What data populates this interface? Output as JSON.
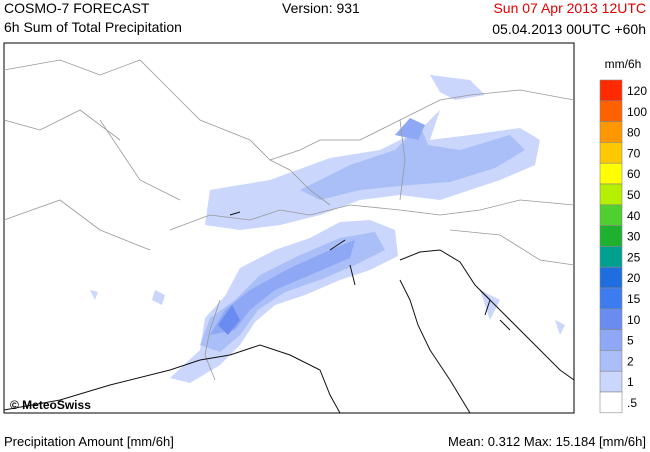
{
  "header": {
    "title": "COSMO-7 FORECAST",
    "subtitle": "6h Sum of Total Precipitation",
    "version": "Version: 931",
    "valid_time": "Sun 07 Apr 2013 12UTC",
    "run": "05.04.2013 00UTC +60h"
  },
  "map": {
    "copyright": "© MeteoSwiss"
  },
  "legend": {
    "unit": "mm/6h",
    "items": [
      {
        "label": "120",
        "color": "#ff2a00"
      },
      {
        "label": "100",
        "color": "#ff6000"
      },
      {
        "label": "80",
        "color": "#ff9800"
      },
      {
        "label": "70",
        "color": "#ffc800"
      },
      {
        "label": "60",
        "color": "#ffff00"
      },
      {
        "label": "50",
        "color": "#b4f000"
      },
      {
        "label": "40",
        "color": "#50d030"
      },
      {
        "label": "30",
        "color": "#20b030"
      },
      {
        "label": "25",
        "color": "#00a090"
      },
      {
        "label": "20",
        "color": "#1e6ee0"
      },
      {
        "label": "15",
        "color": "#3c7cf0"
      },
      {
        "label": "10",
        "color": "#6a8cf0"
      },
      {
        "label": "5",
        "color": "#8ea8f5"
      },
      {
        "label": "2",
        "color": "#aabef8"
      },
      {
        "label": "1",
        "color": "#cad6fb"
      },
      {
        "label": ".5",
        "color": "#ffffff"
      }
    ]
  },
  "footer": {
    "left": "Precipitation Amount [mm/6h]",
    "right": "Mean:  0.312 Max: 15.184 [mm/6h]"
  }
}
